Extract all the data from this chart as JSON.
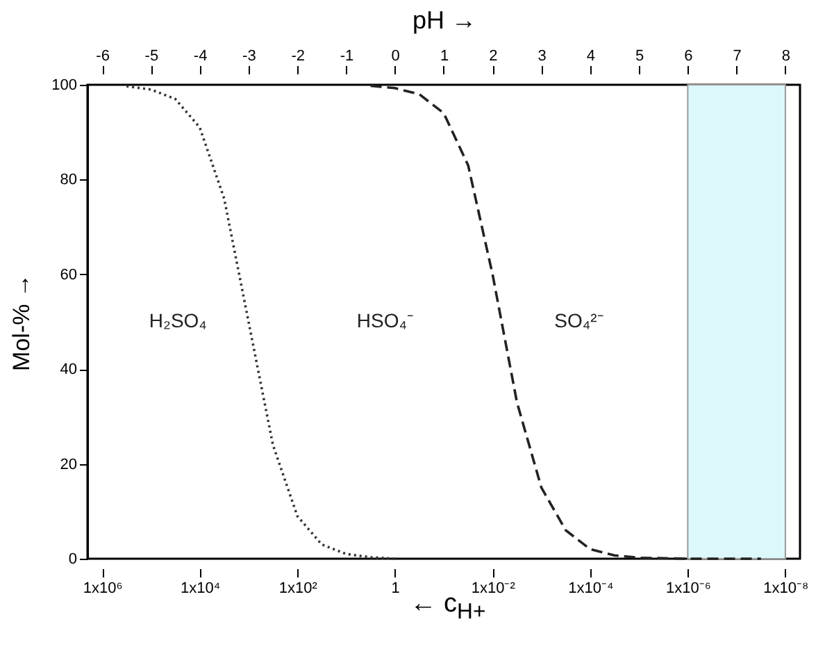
{
  "chart_data": {
    "type": "line",
    "xlabel": "← c$_{H+}$",
    "x2label": "pH →",
    "ylabel": "Mol-% →",
    "log": "x",
    "xlim": [
      2000000,
      5e-09
    ],
    "x2lim": [
      -6.3,
      8.3
    ],
    "ylim": [
      0,
      100
    ],
    "xticks": [
      {
        "value": 1000000,
        "label": "1x10⁶"
      },
      {
        "value": 10000,
        "label": "1x10⁴"
      },
      {
        "value": 100,
        "label": "1x10²"
      },
      1,
      {
        "value": 0.01,
        "label": "1x10⁻²"
      },
      {
        "value": 0.0001,
        "label": "1x10⁻⁴"
      },
      {
        "value": 1e-06,
        "label": "1x10⁻⁶"
      },
      {
        "value": 1e-08,
        "label": "1x10⁻⁸"
      }
    ],
    "x2ticks": [
      -6,
      -5,
      -4,
      -3,
      -2,
      -1,
      0,
      1,
      2,
      3,
      4,
      5,
      6,
      7,
      8
    ],
    "yticks": [
      0,
      20,
      40,
      60,
      80,
      100
    ],
    "series": [
      {
        "color": "#333333",
        "line_style": "dotted",
        "axis": "x2",
        "x": [
          -5.5,
          -5,
          -4.5,
          -4,
          -3.5,
          -3,
          -2.5,
          -2,
          -1.5,
          -1,
          -0.5,
          0
        ],
        "values": [
          99.7,
          99,
          97,
          91,
          76,
          50,
          24,
          9,
          3,
          1,
          0.3,
          0
        ]
      },
      {
        "color": "#222222",
        "line_style": "dashed",
        "axis": "x2",
        "x": [
          -0.5,
          0,
          0.5,
          1,
          1.5,
          2,
          2.5,
          3,
          3.5,
          4,
          4.5,
          5,
          6,
          7,
          7.5
        ],
        "values": [
          99.8,
          99.3,
          98,
          94,
          83,
          60,
          33,
          15,
          6,
          2,
          0.7,
          0.2,
          0,
          0,
          0
        ]
      }
    ],
    "bands": [
      {
        "axis": "x2",
        "from": 6,
        "to": 8,
        "color": "#dcf8fb"
      }
    ],
    "annotations": [
      "H₂SO₄",
      "HSO₄⁻",
      "SO₄²⁻"
    ]
  }
}
